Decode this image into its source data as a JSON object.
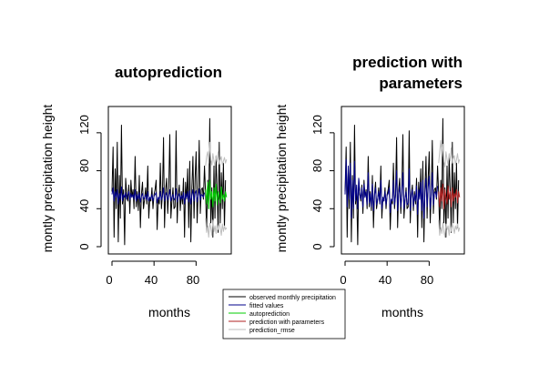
{
  "chart_data": [
    {
      "type": "line",
      "title": "autoprediction",
      "xlabel": "months",
      "ylabel": "montly precipitation height",
      "xlim": [
        0,
        110
      ],
      "ylim": [
        0,
        140
      ],
      "xticks": [
        "0",
        "40",
        "80"
      ],
      "yticks": [
        "0",
        "40",
        "80",
        "120"
      ],
      "grid": false,
      "series": [
        {
          "name": "observed monthly precipitation",
          "color": "#000000",
          "x_start": 0,
          "values": [
            58,
            105,
            10,
            82,
            40,
            110,
            5,
            75,
            30,
            128,
            45,
            60,
            2,
            72,
            55,
            48,
            65,
            35,
            70,
            52,
            60,
            40,
            95,
            42,
            58,
            38,
            75,
            20,
            55,
            68,
            40,
            50,
            62,
            45,
            85,
            30,
            52,
            48,
            62,
            40,
            55,
            60,
            70,
            18,
            50,
            45,
            88,
            40,
            55,
            115,
            20,
            60,
            72,
            35,
            58,
            118,
            30,
            48,
            62,
            40,
            42,
            122,
            25,
            55,
            65,
            38,
            58,
            45,
            72,
            10,
            68,
            50,
            82,
            20,
            90,
            5,
            60,
            95,
            30,
            70,
            100,
            25,
            58,
            112,
            35,
            60,
            62,
            50,
            85,
            55,
            18,
            70,
            40,
            135,
            25,
            62,
            10,
            85,
            30,
            95,
            58,
            15,
            110,
            25,
            78,
            40,
            88,
            20,
            70
          ]
        },
        {
          "name": "fitted values",
          "color": "#00008b",
          "x_start": 0,
          "values": [
            55,
            62,
            48,
            58,
            52,
            60,
            45,
            56,
            50,
            63,
            48,
            55,
            52,
            57,
            50,
            54,
            58,
            49,
            56,
            52,
            55,
            50,
            60,
            48,
            55,
            50,
            57,
            47,
            53,
            56,
            50,
            52,
            55,
            49,
            58,
            48,
            52,
            50,
            55,
            48,
            53,
            55,
            57,
            46,
            52,
            50,
            58,
            49,
            53,
            62,
            48,
            54,
            57,
            49,
            53,
            60,
            48,
            52,
            55,
            49,
            51,
            61,
            47,
            53,
            56,
            49,
            54,
            50,
            57,
            45,
            56,
            51,
            58,
            47,
            59,
            45,
            54,
            60,
            48,
            56,
            59,
            47,
            54,
            61,
            49,
            55,
            54,
            52,
            57
          ]
        },
        {
          "name": "autoprediction",
          "color": "#00cd00",
          "x_start": 89,
          "values": [
            60,
            45,
            68,
            40,
            70,
            50,
            58,
            42,
            62,
            48,
            66,
            44,
            58,
            52,
            46,
            63,
            50,
            55,
            48,
            58,
            52
          ]
        },
        {
          "name": "prediction_rmse",
          "color": "#bebebe",
          "x_start": 89,
          "values": [
            85,
            95,
            100,
            88,
            110,
            92,
            86,
            98,
            90,
            84,
            96,
            89,
            100,
            87,
            92,
            95,
            86,
            90,
            94,
            88,
            92
          ],
          "values_lower": [
            30,
            15,
            22,
            10,
            25,
            20,
            12,
            28,
            16,
            22,
            14,
            24,
            18,
            26,
            20,
            12,
            24,
            16,
            22,
            18,
            20
          ]
        }
      ]
    },
    {
      "type": "line",
      "title_lines": [
        "prediction with",
        "parameters"
      ],
      "xlabel": "months",
      "ylabel": "montly precipitation height",
      "xlim": [
        0,
        110
      ],
      "ylim": [
        0,
        140
      ],
      "xticks": [
        "0",
        "40",
        "80"
      ],
      "yticks": [
        "0",
        "40",
        "80",
        "120"
      ],
      "grid": false,
      "series": [
        {
          "name": "observed monthly precipitation",
          "color": "#000000",
          "x_start": 0,
          "values": [
            58,
            105,
            10,
            82,
            40,
            110,
            5,
            75,
            30,
            128,
            45,
            60,
            2,
            72,
            55,
            48,
            65,
            35,
            70,
            52,
            60,
            40,
            95,
            42,
            58,
            38,
            75,
            20,
            55,
            68,
            40,
            50,
            62,
            45,
            85,
            30,
            52,
            48,
            62,
            40,
            55,
            60,
            70,
            18,
            50,
            45,
            88,
            40,
            55,
            115,
            20,
            60,
            72,
            35,
            58,
            118,
            30,
            48,
            62,
            40,
            42,
            122,
            25,
            55,
            65,
            38,
            58,
            45,
            72,
            10,
            68,
            50,
            82,
            20,
            90,
            5,
            60,
            95,
            30,
            70,
            100,
            25,
            58,
            112,
            35,
            60,
            62,
            50,
            85,
            55,
            18,
            70,
            40,
            135,
            25,
            62,
            10,
            85,
            30,
            95,
            58,
            15,
            110,
            25,
            78,
            40,
            88,
            20,
            70
          ]
        },
        {
          "name": "fitted values",
          "color": "#00008b",
          "x_start": 0,
          "values": [
            55,
            92,
            42,
            85,
            50,
            88,
            30,
            70,
            40,
            90,
            48,
            65,
            40,
            72,
            55,
            50,
            62,
            42,
            66,
            52,
            58,
            44,
            78,
            46,
            56,
            42,
            66,
            38,
            54,
            62,
            44,
            50,
            58,
            46,
            70,
            40,
            52,
            48,
            58,
            44,
            54,
            56,
            62,
            36,
            50,
            48,
            70,
            44,
            54,
            80,
            38,
            56,
            64,
            42,
            55,
            78,
            40,
            50,
            58,
            44,
            46,
            82,
            38,
            54,
            60,
            42,
            55,
            48,
            64,
            34,
            60,
            50,
            68,
            38,
            70,
            30,
            56,
            72,
            42,
            62,
            74,
            40,
            55,
            78,
            44,
            56,
            58,
            52,
            64
          ]
        },
        {
          "name": "prediction with parameters",
          "color": "#b22222",
          "x_start": 89,
          "values": [
            58,
            42,
            62,
            48,
            66,
            40,
            60,
            52,
            45,
            64,
            50,
            58,
            42,
            62,
            48,
            56,
            52,
            60,
            46,
            58,
            52
          ]
        },
        {
          "name": "prediction_rmse",
          "color": "#bebebe",
          "x_start": 89,
          "values": [
            88,
            100,
            112,
            95,
            108,
            90,
            84,
            100,
            92,
            86,
            98,
            90,
            104,
            88,
            94,
            96,
            86,
            92,
            98,
            88,
            92
          ],
          "values_lower": [
            28,
            12,
            20,
            14,
            26,
            16,
            10,
            24,
            18,
            22,
            12,
            26,
            16,
            24,
            20,
            14,
            22,
            18,
            24,
            16,
            20
          ]
        }
      ]
    }
  ],
  "legend": {
    "items": [
      {
        "label": "observed monthly precipitation",
        "color": "#000000"
      },
      {
        "label": "fitted values",
        "color": "#00008b"
      },
      {
        "label": "autoprediction",
        "color": "#00cd00"
      },
      {
        "label": "prediction with parameters",
        "color": "#b22222"
      },
      {
        "label": "prediction_rmse",
        "color": "#bebebe"
      }
    ]
  }
}
